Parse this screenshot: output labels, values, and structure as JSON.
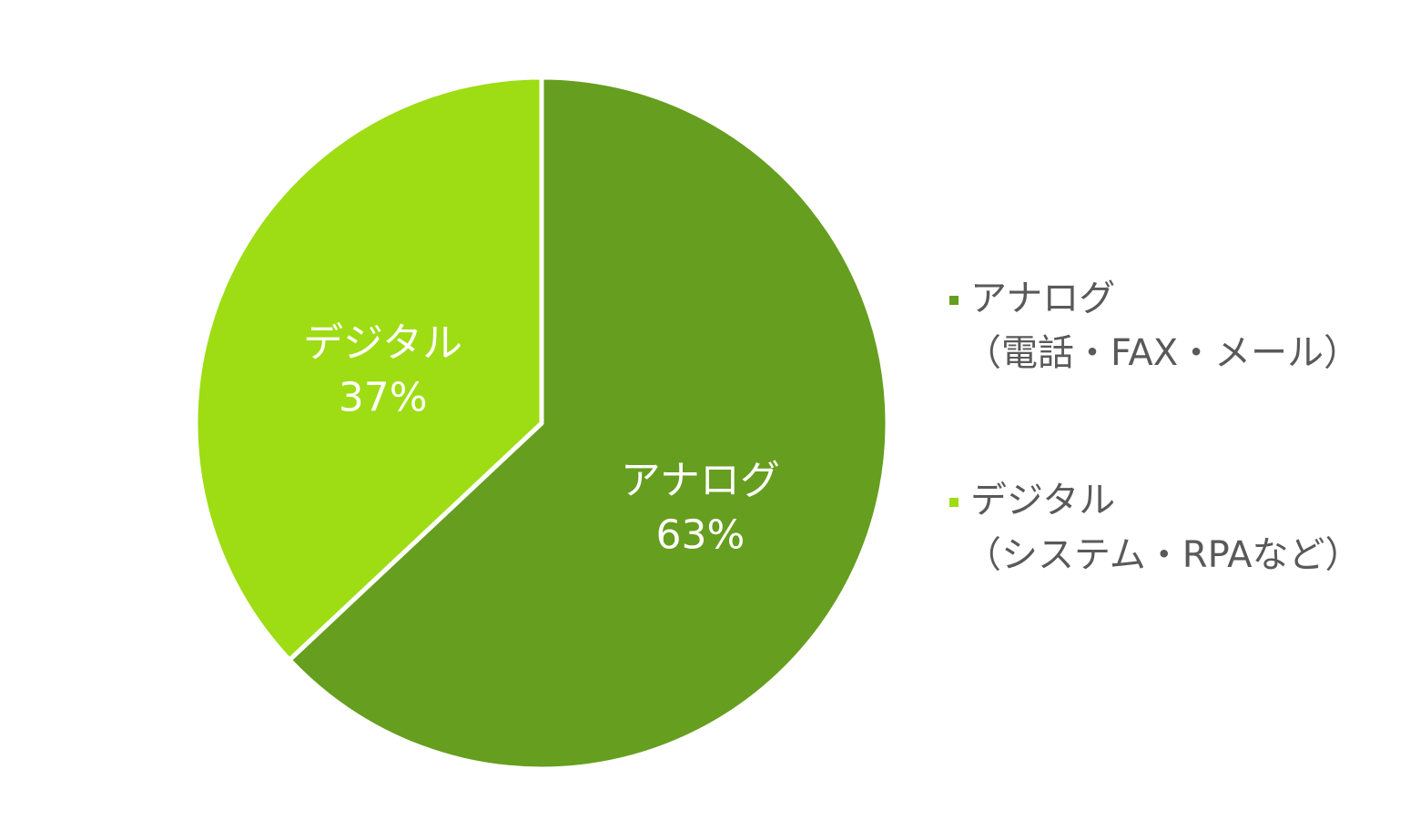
{
  "chart_data": {
    "type": "pie",
    "categories": [
      "アナログ",
      "デジタル"
    ],
    "category_notes": [
      "（電話・FAX・メール）",
      "（システム・RPAなど）"
    ],
    "values": [
      63,
      37
    ],
    "value_labels": [
      "63%",
      "37%"
    ],
    "colors": [
      "#669e1f",
      "#9edc14"
    ],
    "legend": "right"
  }
}
